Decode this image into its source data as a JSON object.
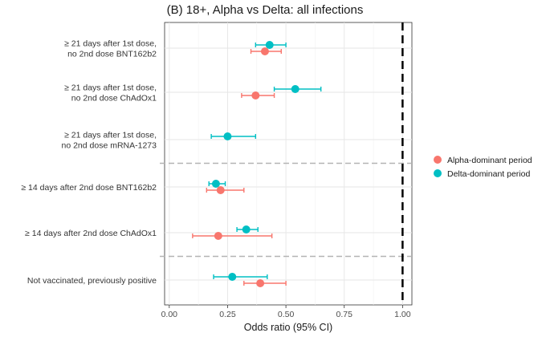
{
  "chart_data": {
    "type": "scatter",
    "subtype": "forest-plot",
    "title": "(B) 18+, Alpha vs Delta: all infections",
    "xlabel": "Odds ratio (95% CI)",
    "xlim": [
      -0.02,
      1.04
    ],
    "x_ticks": [
      0.0,
      0.25,
      0.5,
      0.75,
      1.0
    ],
    "x_tick_labels": [
      "0.00",
      "0.25",
      "0.50",
      "0.75",
      "1.00"
    ],
    "reference_line": 1.0,
    "grid": true,
    "legend_position": "right",
    "rows": [
      {
        "label_lines": [
          "≥ 21 days after 1st dose,",
          "no 2nd dose BNT162b2"
        ]
      },
      {
        "label_lines": [
          "≥ 21 days after 1st dose,",
          "no 2nd dose ChAdOx1"
        ]
      },
      {
        "label_lines": [
          "≥ 21 days after 1st dose,",
          "no 2nd dose mRNA-1273"
        ]
      },
      {
        "label_lines": [
          "≥ 14 days after 2nd dose BNT162b2"
        ]
      },
      {
        "label_lines": [
          "≥ 14 days after 2nd dose ChAdOx1"
        ]
      },
      {
        "label_lines": [
          "Not vaccinated, previously positive"
        ]
      }
    ],
    "group_separators_after_row": [
      2,
      4
    ],
    "series": [
      {
        "name": "Alpha-dominant period",
        "color": "#f8766d",
        "points": [
          {
            "row": 0,
            "or": 0.41,
            "lower": 0.35,
            "upper": 0.48
          },
          {
            "row": 1,
            "or": 0.37,
            "lower": 0.31,
            "upper": 0.45
          },
          {
            "row": 3,
            "or": 0.22,
            "lower": 0.16,
            "upper": 0.32
          },
          {
            "row": 4,
            "or": 0.21,
            "lower": 0.1,
            "upper": 0.44
          },
          {
            "row": 5,
            "or": 0.39,
            "lower": 0.32,
            "upper": 0.5
          }
        ]
      },
      {
        "name": "Delta-dominant period",
        "color": "#00bfc4",
        "points": [
          {
            "row": 0,
            "or": 0.43,
            "lower": 0.37,
            "upper": 0.5
          },
          {
            "row": 1,
            "or": 0.54,
            "lower": 0.45,
            "upper": 0.65
          },
          {
            "row": 2,
            "or": 0.25,
            "lower": 0.18,
            "upper": 0.37
          },
          {
            "row": 3,
            "or": 0.2,
            "lower": 0.17,
            "upper": 0.24
          },
          {
            "row": 4,
            "or": 0.33,
            "lower": 0.29,
            "upper": 0.38
          },
          {
            "row": 5,
            "or": 0.27,
            "lower": 0.19,
            "upper": 0.42
          }
        ]
      }
    ]
  }
}
